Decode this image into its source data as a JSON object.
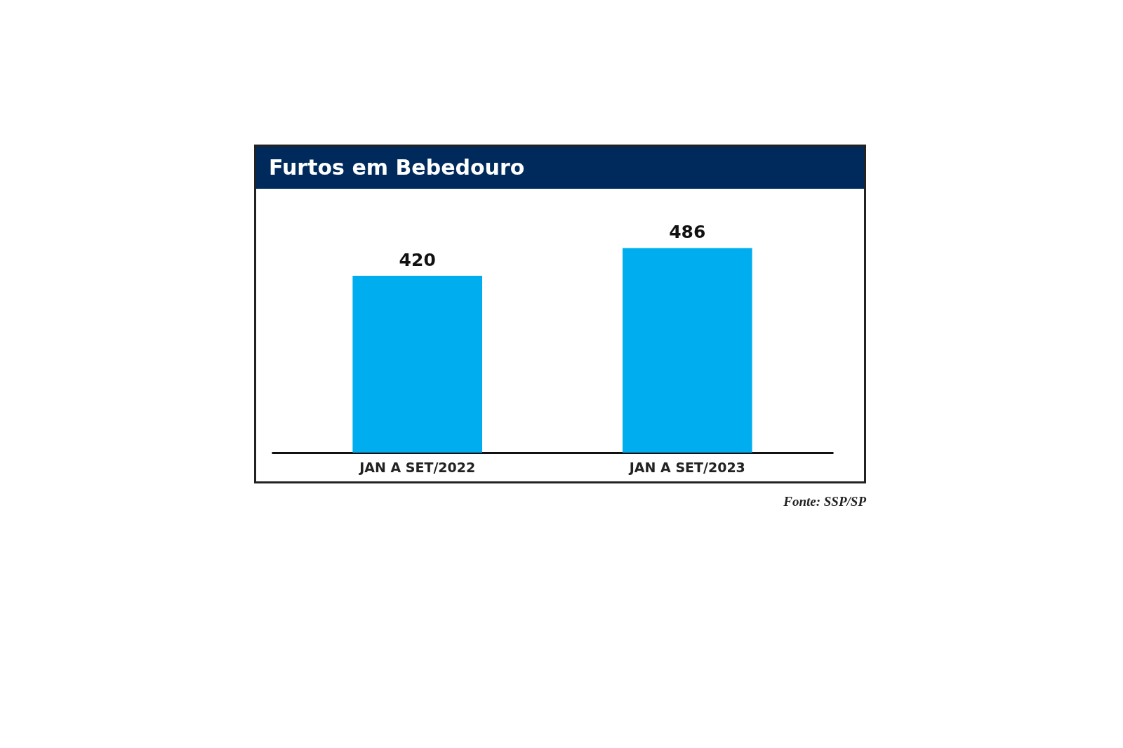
{
  "chart_data": {
    "type": "bar",
    "title": "Furtos em Bebedouro",
    "categories": [
      "JAN A SET/2022",
      "JAN A SET/2023"
    ],
    "values": [
      420,
      486
    ],
    "color": "#00aeef",
    "data_labels": true,
    "annotations": [
      "Fonte: SSP/SP"
    ]
  }
}
